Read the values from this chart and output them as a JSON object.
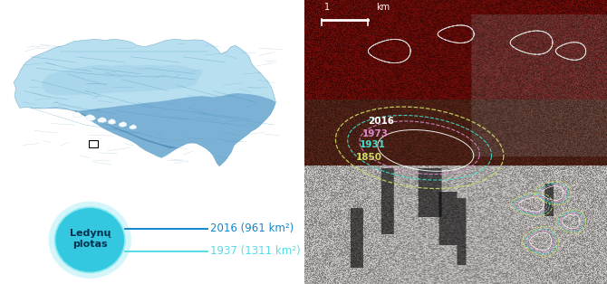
{
  "circle_outer_color": "#7ae8f0",
  "circle_inner_color": "#33c8e0",
  "circle_text": "Ledynų\nplotas",
  "circle_text_color": "#003050",
  "line1_color": "#1188cc",
  "line2_color": "#55dce8",
  "label1_text": "2016 (961 km²)",
  "label2_text": "1937 (1311 km²)",
  "label1_color": "#1188cc",
  "label2_color": "#55dce8",
  "label_fontsize": 8.5,
  "circle_fontsize": 8.0,
  "year_labels": [
    "1850",
    "1931",
    "1973",
    "2016"
  ],
  "year_colors": [
    "#ccdd66",
    "#44ddcc",
    "#dd88cc",
    "#ffffff"
  ],
  "scalebar_color": "#ffffff"
}
